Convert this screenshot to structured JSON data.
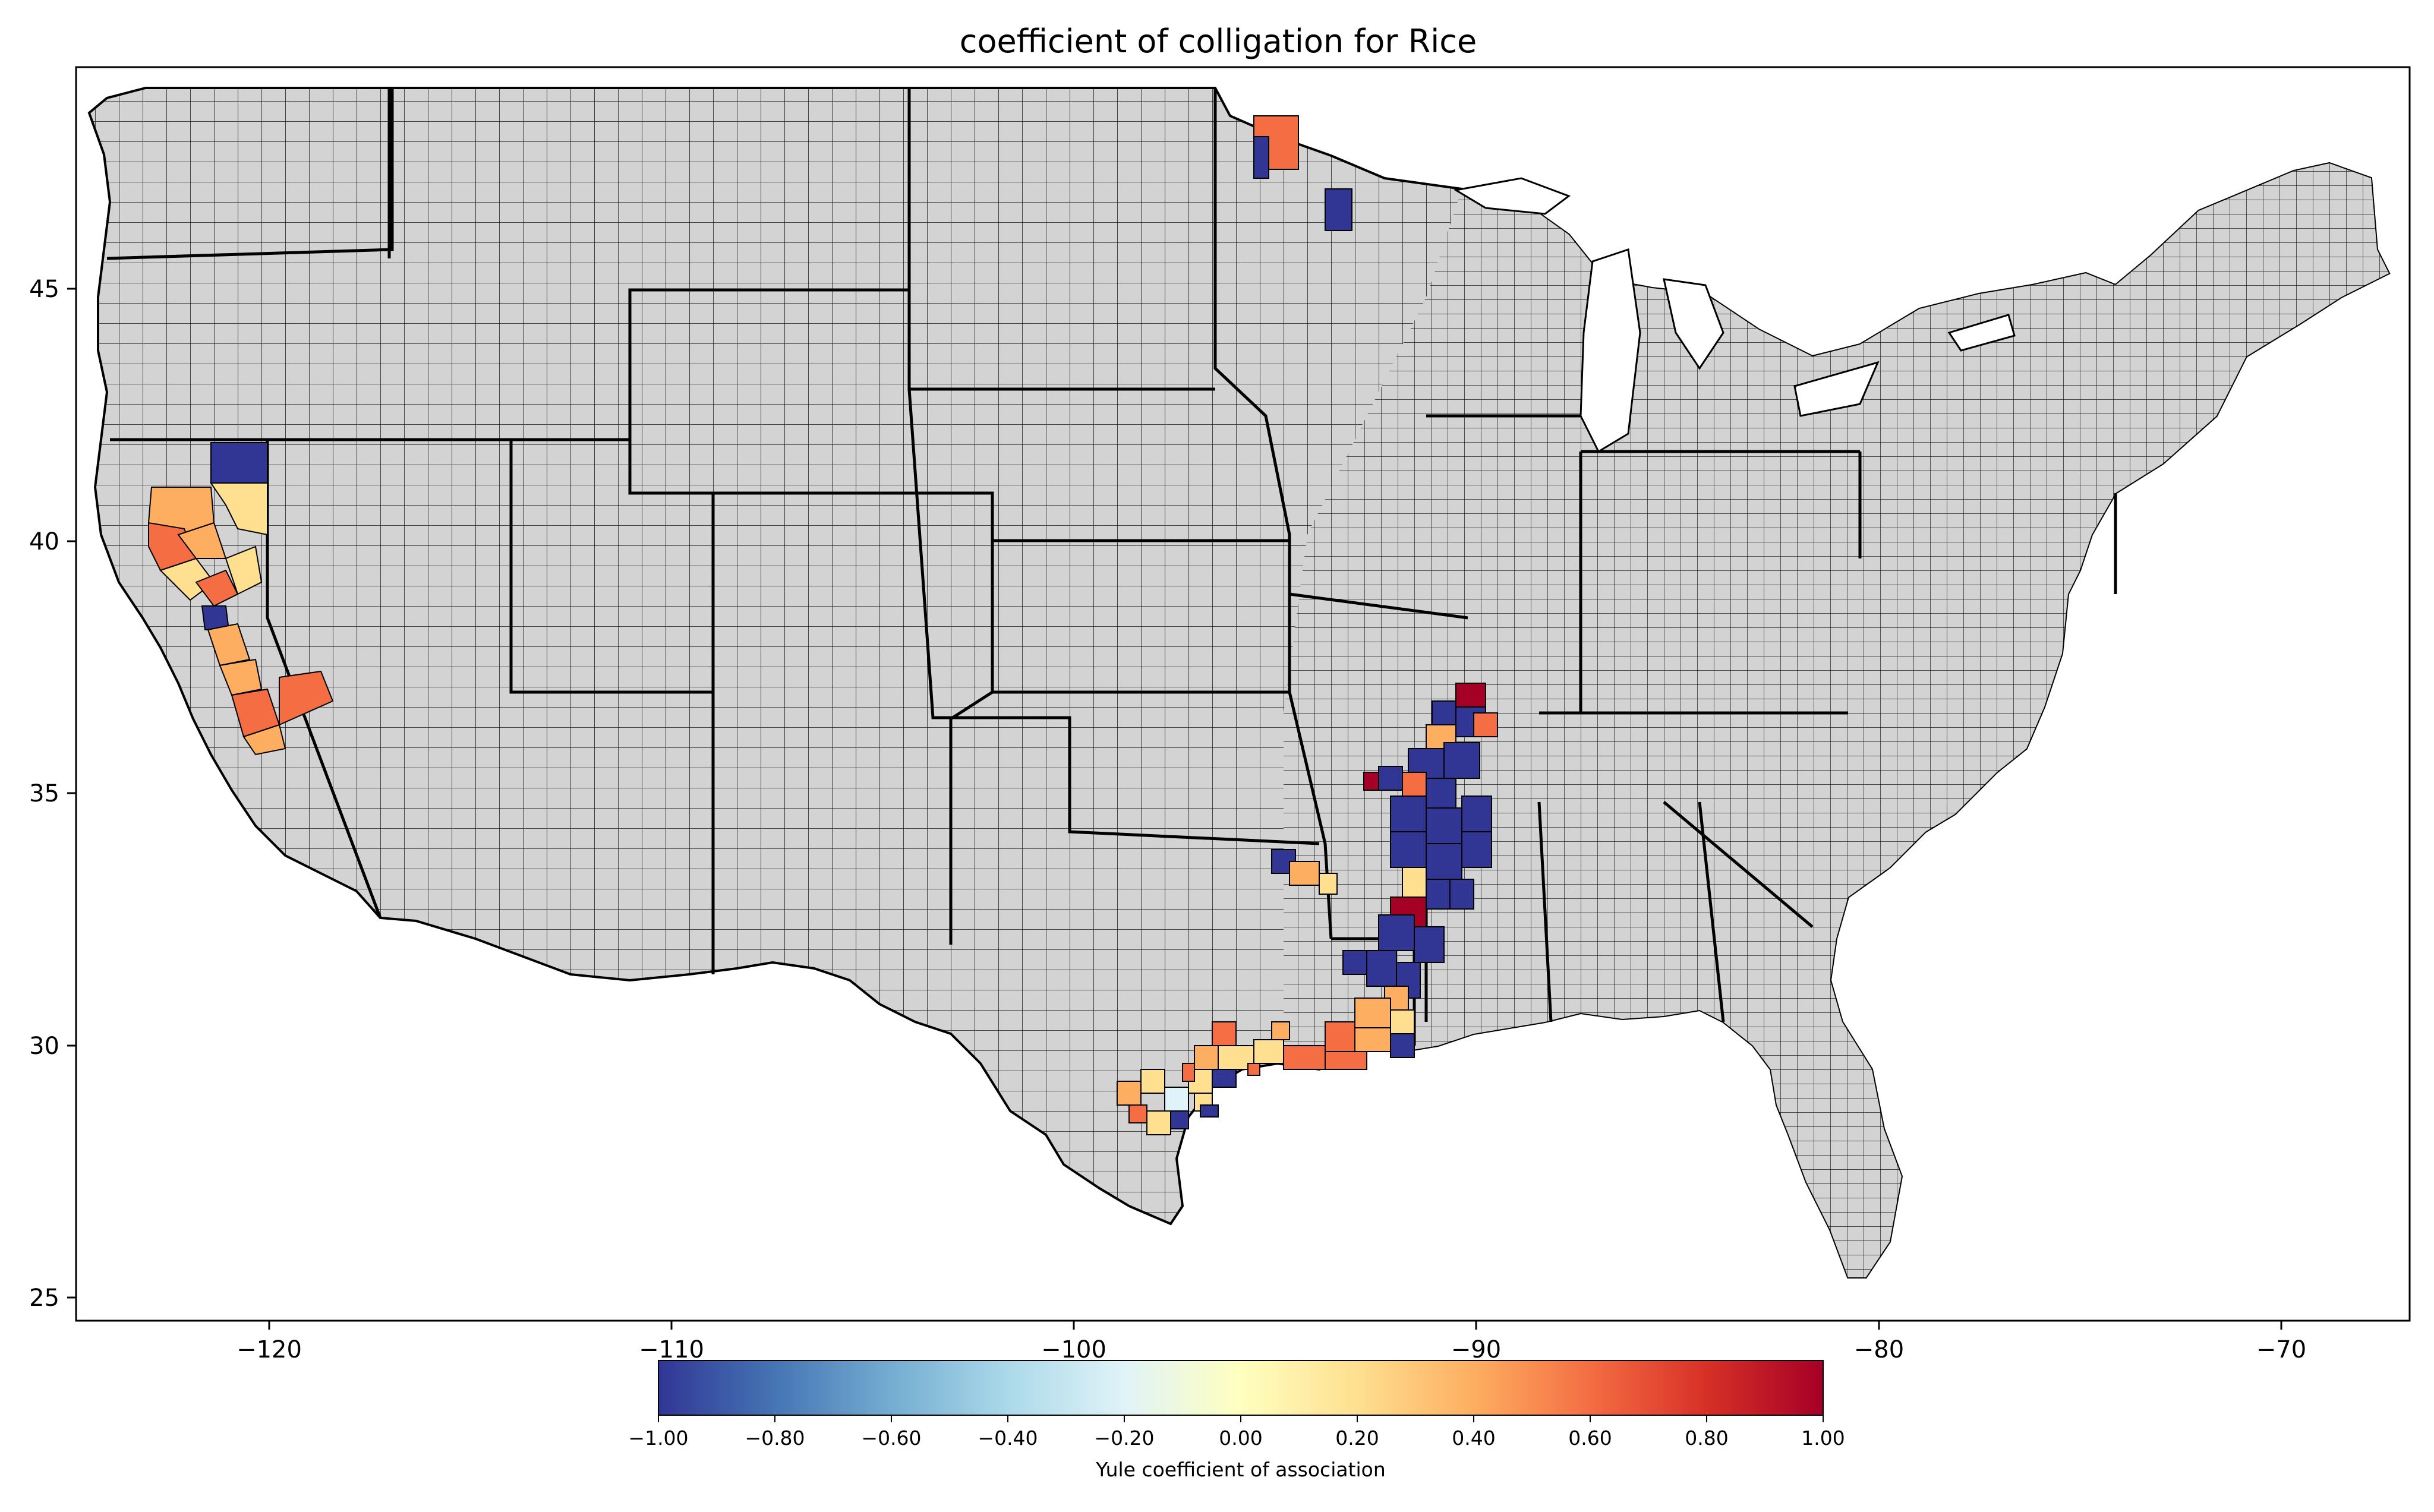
{
  "title": "coefficient of colligation for Rice",
  "x_ticks": [
    "−120",
    "−110",
    "−100",
    "−90",
    "−80",
    "−70"
  ],
  "y_ticks": [
    "45",
    "40",
    "35",
    "30",
    "25"
  ],
  "colorbar": {
    "label": "Yule coefficient of association",
    "ticks": [
      "−1.00",
      "−0.80",
      "−0.60",
      "−0.40",
      "−0.20",
      "0.00",
      "0.20",
      "0.40",
      "0.60",
      "0.80",
      "1.00"
    ],
    "colormap": "RdYlBu_r",
    "min": -1.0,
    "max": 1.0
  },
  "colors": {
    "background_land": "#d3d3d3",
    "county_border": "#000000",
    "negative_strong": "#313695",
    "positive_strong": "#a50026",
    "positive_mid": "#f46d43",
    "positive_low": "#fdae61",
    "near_zero_positive": "#fee090"
  },
  "highlighted_regions": {
    "california_central_valley": "mostly positive (0.2 to 0.6), one county near -1.0",
    "northern_california_top": "-1.00",
    "minnesota_northwest": "mixed: 0.6 and -1.00",
    "mississippi_delta_arkansas": "mostly -1.00 with scattered 0.4 to 1.00",
    "louisiana_texas_gulf_coast": "mostly 0.2 to 0.6 with some -1.00"
  }
}
